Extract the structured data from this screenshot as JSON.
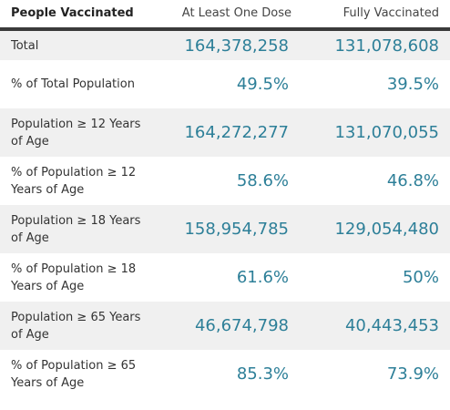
{
  "header": {
    "label": "People Vaccinated",
    "col_one_dose": "At Least One Dose",
    "col_fully": "Fully Vaccinated"
  },
  "rows": [
    {
      "label": "Total",
      "one_dose": "164,378,258",
      "fully": "131,078,608"
    },
    {
      "label": "% of Total Population",
      "one_dose": "49.5%",
      "fully": "39.5%"
    },
    {
      "label": "Population ≥ 12 Years of Age",
      "one_dose": "164,272,277",
      "fully": "131,070,055"
    },
    {
      "label": "% of Population ≥ 12 Years of Age",
      "one_dose": "58.6%",
      "fully": "46.8%"
    },
    {
      "label": "Population ≥ 18 Years of Age",
      "one_dose": "158,954,785",
      "fully": "129,054,480"
    },
    {
      "label": "% of Population ≥ 18 Years of Age",
      "one_dose": "61.6%",
      "fully": "50%"
    },
    {
      "label": "Population ≥ 65 Years of Age",
      "one_dose": "46,674,798",
      "fully": "40,443,453"
    },
    {
      "label": "% of Population ≥ 65 Years of Age",
      "one_dose": "85.3%",
      "fully": "73.9%"
    }
  ]
}
